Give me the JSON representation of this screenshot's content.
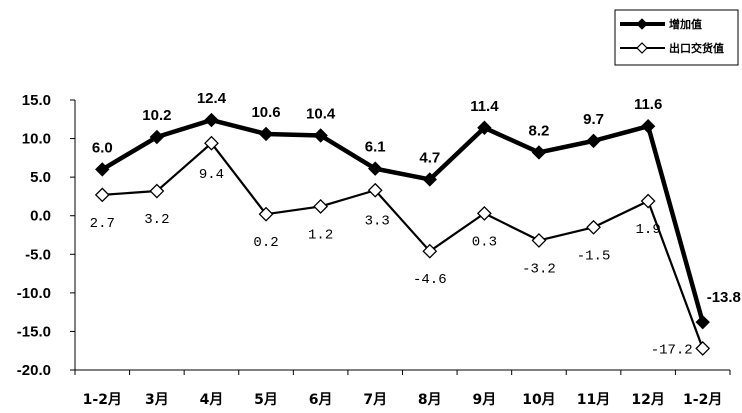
{
  "chart_data": {
    "type": "line",
    "categories": [
      "1-2月",
      "3月",
      "4月",
      "5月",
      "6月",
      "7月",
      "8月",
      "9月",
      "10月",
      "11月",
      "12月",
      "1-2月"
    ],
    "series": [
      {
        "name": "增加值",
        "values": [
          6.0,
          10.2,
          12.4,
          10.6,
          10.4,
          6.1,
          4.7,
          11.4,
          8.2,
          9.7,
          11.6,
          -13.8
        ],
        "labels": [
          "6.0",
          "10.2",
          "12.4",
          "10.6",
          "10.4",
          "6.1",
          "4.7",
          "11.4",
          "8.2",
          "9.7",
          "11.6",
          "-13.8"
        ],
        "color": "#000000",
        "marker": "filled-diamond"
      },
      {
        "name": "出口交货值",
        "values": [
          2.7,
          3.2,
          9.4,
          0.2,
          1.2,
          3.3,
          -4.6,
          0.3,
          -3.2,
          -1.5,
          1.9,
          -17.2
        ],
        "labels": [
          "2.7",
          "3.2",
          "9.4",
          "0.2",
          "1.2",
          "3.3",
          "-4.6",
          "0.3",
          "-3.2",
          "-1.5",
          "1.9",
          "-17.2"
        ],
        "color": "#000000",
        "marker": "open-diamond"
      }
    ],
    "yticks": [
      "15.0",
      "10.0",
      "5.0",
      "0.0",
      "-5.0",
      "-10.0",
      "-15.0",
      "-20.0"
    ],
    "ylim": [
      -20,
      15
    ],
    "grid": false,
    "legend": "top-right",
    "title": "",
    "xlabel": "",
    "ylabel": ""
  }
}
